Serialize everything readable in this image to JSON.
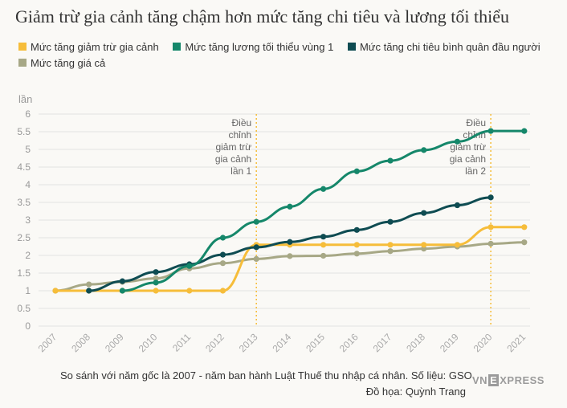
{
  "title": "Giảm trừ gia cảnh tăng chậm hơn mức tăng chi tiêu và lương tối thiểu",
  "footnote": "So sánh với năm gốc là 2007 - năm ban hành Luật Thuế thu nhập cá nhân. Số liệu: GSO.",
  "byline": "Đồ họa: Quỳnh Trang",
  "logo": {
    "text_before": "VN",
    "badge": "E",
    "text_after": "XPRESS"
  },
  "chart_data": {
    "type": "line",
    "ylabel": "lần",
    "ylim": [
      0,
      6
    ],
    "yticks": [
      "0",
      "0.5",
      "1",
      "1.5",
      "2",
      "2.5",
      "3",
      "3.5",
      "4",
      "4.5",
      "5",
      "5.5",
      "6"
    ],
    "x": [
      "2007",
      "2008",
      "2009",
      "2010",
      "2011",
      "2012",
      "2013",
      "2014",
      "2015",
      "2016",
      "2017",
      "2018",
      "2019",
      "2020",
      "2021"
    ],
    "series": [
      {
        "name": "Mức tăng giảm trừ gia cảnh",
        "color": "#f6bd3a",
        "values": [
          1,
          1,
          1,
          1,
          1,
          1,
          2.3,
          2.3,
          2.3,
          2.3,
          2.3,
          2.3,
          2.3,
          2.8,
          2.8
        ]
      },
      {
        "name": "Mức tăng lương tối thiểu vùng 1",
        "color": "#15876a",
        "values": [
          null,
          null,
          1,
          1.23,
          1.7,
          2.5,
          2.95,
          3.38,
          3.88,
          4.38,
          4.68,
          4.98,
          5.22,
          5.52,
          5.52
        ]
      },
      {
        "name": "Mức tăng chi tiêu bình quân đầu người",
        "color": "#0f4c52",
        "values": [
          null,
          1,
          1.27,
          1.53,
          1.75,
          2.02,
          2.23,
          2.38,
          2.53,
          2.72,
          2.95,
          3.2,
          3.42,
          3.64,
          null
        ]
      },
      {
        "name": "Mức tăng giá cả",
        "color": "#a7a886",
        "values": [
          1,
          1.18,
          1.25,
          1.35,
          1.63,
          1.78,
          1.9,
          1.98,
          1.99,
          2.05,
          2.12,
          2.19,
          2.25,
          2.33,
          2.37
        ]
      }
    ],
    "annotations": [
      {
        "year": "2013",
        "lines": [
          "Điều",
          "chỉnh",
          "giảm trừ",
          "gia cảnh",
          "lần 1"
        ]
      },
      {
        "year": "2020",
        "lines": [
          "Điều",
          "chỉnh",
          "giảm trừ",
          "gia cảnh",
          "lần 2"
        ]
      }
    ]
  }
}
